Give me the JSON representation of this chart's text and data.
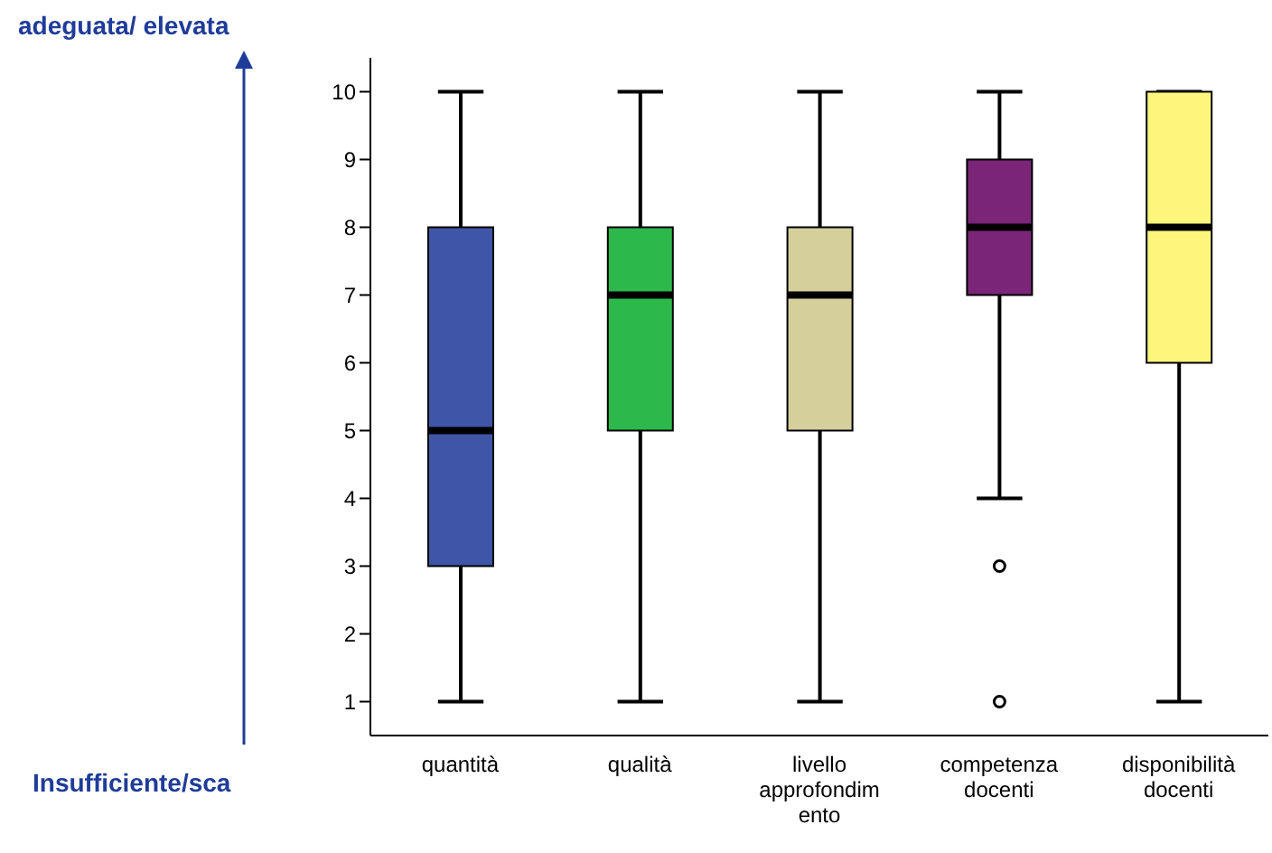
{
  "chart_data": {
    "type": "box",
    "categories": [
      "quantità",
      "qualità",
      "livello\napprofondim\nento",
      "competenza\ndocenti",
      "disponibilità\ndocenti"
    ],
    "boxes": [
      {
        "low": 1,
        "q1": 3,
        "median": 5,
        "q3": 8,
        "high": 10
      },
      {
        "low": 1,
        "q1": 5,
        "median": 7,
        "q3": 8,
        "high": 10
      },
      {
        "low": 1,
        "q1": 5,
        "median": 7,
        "q3": 8,
        "high": 10
      },
      {
        "low": 4,
        "q1": 7,
        "median": 8,
        "q3": 9,
        "high": 10,
        "outliers": [
          3,
          1
        ]
      },
      {
        "low": 1,
        "q1": 6,
        "median": 8,
        "q3": 10,
        "high": 10
      }
    ],
    "colors": [
      "#3f55a8",
      "#2cb84a",
      "#d5cf9b",
      "#7a2577",
      "#fdf67d"
    ],
    "ylim": [
      0.5,
      10.5
    ],
    "yticks": [
      1,
      2,
      3,
      4,
      5,
      6,
      7,
      8,
      9,
      10
    ],
    "annotations": [
      "adeguata/ elevata",
      "Insufficiente/sca"
    ]
  }
}
